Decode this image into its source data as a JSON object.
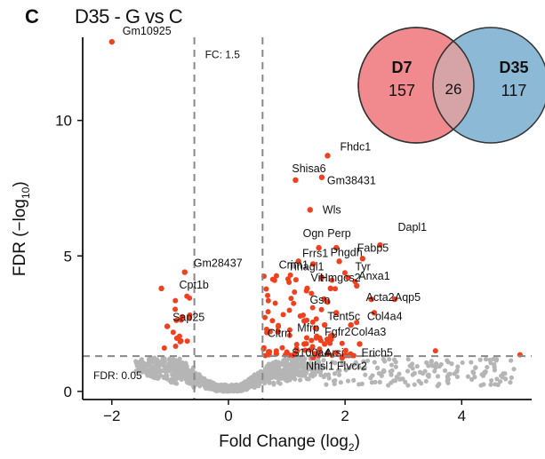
{
  "panel_letter": "C",
  "title": "D35 - G vs C",
  "chart_data": {
    "type": "scatter",
    "xlabel_main": "Fold Change (log",
    "xlabel_sub": "2",
    "xlabel_end": ")",
    "ylabel_main": "FDR (−log",
    "ylabel_sub": "10",
    "ylabel_end": ")",
    "xlim": [
      -2.5,
      5.2
    ],
    "ylim": [
      -0.3,
      13.2
    ],
    "x_ticks": [
      -2,
      0,
      2,
      4
    ],
    "y_ticks": [
      0,
      5,
      10
    ],
    "fc_thresholds": [
      -0.585,
      0.585
    ],
    "fdr_threshold": 1.3,
    "fc_label": "FC: 1.5",
    "fdr_label": "FDR: 0.05",
    "colors": {
      "significant": "#f0401e",
      "background": "#b5b5b5",
      "threshold": "#888888"
    },
    "labeled_genes": [
      {
        "name": "Gm10925",
        "x": -2.0,
        "y": 12.9
      },
      {
        "name": "Fhdc1",
        "x": 1.7,
        "y": 8.7
      },
      {
        "name": "Shisa6",
        "x": 1.15,
        "y": 7.8
      },
      {
        "name": "Gm38431",
        "x": 1.6,
        "y": 7.9
      },
      {
        "name": "Wls",
        "x": 1.4,
        "y": 6.7
      },
      {
        "name": "Ogn",
        "x": 1.55,
        "y": 5.3
      },
      {
        "name": "Perp",
        "x": 1.85,
        "y": 5.3
      },
      {
        "name": "Dapl1",
        "x": 2.6,
        "y": 5.4
      },
      {
        "name": "Crim1",
        "x": 1.2,
        "y": 4.8
      },
      {
        "name": "Frrs1",
        "x": 1.45,
        "y": 4.7
      },
      {
        "name": "Phgdh",
        "x": 1.9,
        "y": 4.8
      },
      {
        "name": "Fabp5",
        "x": 2.3,
        "y": 4.9
      },
      {
        "name": "Gm28437",
        "x": -0.75,
        "y": 4.4
      },
      {
        "name": "Cpt1b",
        "x": -1.15,
        "y": 3.8
      },
      {
        "name": "Tinagl1",
        "x": 1.6,
        "y": 4.2
      },
      {
        "name": "Tyr",
        "x": 2.05,
        "y": 4.2
      },
      {
        "name": "Vit",
        "x": 1.35,
        "y": 3.8
      },
      {
        "name": "Hmgcs2",
        "x": 1.75,
        "y": 3.8
      },
      {
        "name": "Anxa1",
        "x": 2.2,
        "y": 3.9
      },
      {
        "name": "Gsn",
        "x": 1.7,
        "y": 3.3
      },
      {
        "name": "Acta2",
        "x": 2.45,
        "y": 3.4
      },
      {
        "name": "Aqp5",
        "x": 2.85,
        "y": 3.4
      },
      {
        "name": "Tent5c",
        "x": 1.85,
        "y": 2.9
      },
      {
        "name": "Col4a4",
        "x": 2.5,
        "y": 2.9
      },
      {
        "name": "Mfrp",
        "x": 1.3,
        "y": 2.6
      },
      {
        "name": "Fgfr2",
        "x": 1.65,
        "y": 2.45
      },
      {
        "name": "Col4a3",
        "x": 2.1,
        "y": 2.45
      },
      {
        "name": "Sap25",
        "x": -1.05,
        "y": 2.4
      },
      {
        "name": "Cltrn",
        "x": 0.85,
        "y": 2.2
      },
      {
        "name": "S100a4",
        "x": 1.3,
        "y": 1.75
      },
      {
        "name": "Arsi",
        "x": 1.65,
        "y": 1.75
      },
      {
        "name": "Erich5",
        "x": 2.25,
        "y": 1.75
      },
      {
        "name": "Nhsl1",
        "x": 1.45,
        "y": 1.25
      },
      {
        "name": "Flvcr2",
        "x": 1.95,
        "y": 1.25
      }
    ],
    "venn": {
      "sets": [
        {
          "name": "D7",
          "count": 157,
          "color": "#f08a8e"
        },
        {
          "name": "D35",
          "count": 117,
          "color": "#7fb1d2"
        }
      ],
      "overlap": 26
    }
  }
}
